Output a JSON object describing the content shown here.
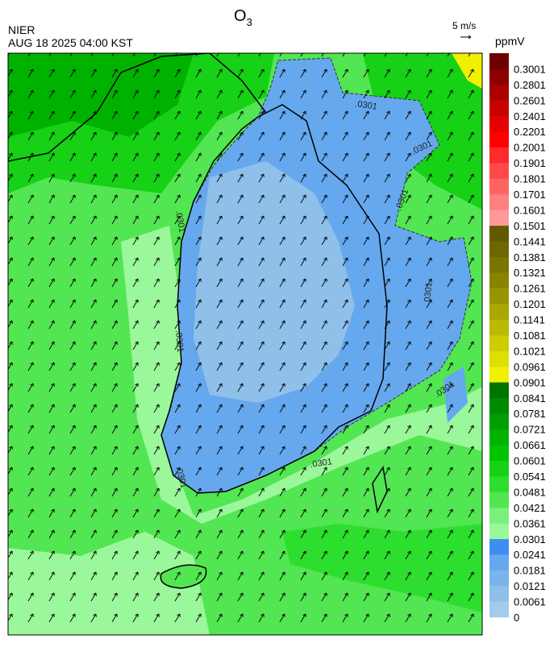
{
  "header": {
    "title": {
      "main": "O",
      "subscript": "3"
    },
    "source": "NIER",
    "datetime": "AUG 18 2025 04:00 KST",
    "wind_scale": "5 m/s"
  },
  "colorbar": {
    "unit": "ppmV",
    "levels": [
      0,
      0.0061,
      0.0121,
      0.0181,
      0.0241,
      0.0301,
      0.0361,
      0.0421,
      0.0481,
      0.0541,
      0.0601,
      0.0661,
      0.0721,
      0.0781,
      0.0841,
      0.0901,
      0.0961,
      0.1021,
      0.1081,
      0.1141,
      0.1201,
      0.1261,
      0.1321,
      0.1381,
      0.1441,
      0.1501,
      0.1601,
      0.1701,
      0.1801,
      0.1901,
      0.2001,
      0.2201,
      0.2401,
      0.2601,
      0.2801,
      0.3001
    ],
    "colors": [
      "#a3cbea",
      "#8ec0ea",
      "#7ab4ec",
      "#66a8ee",
      "#3e8ef2",
      "#9af79a",
      "#7aef7a",
      "#52e652",
      "#2ede2e",
      "#16d116",
      "#00c400",
      "#00b200",
      "#009e00",
      "#008a00",
      "#007400",
      "#f0f000",
      "#dede00",
      "#cccc00",
      "#baba00",
      "#a8a800",
      "#989600",
      "#888400",
      "#7a7400",
      "#6e6600",
      "#625a00",
      "#ff9a9a",
      "#ff8080",
      "#ff6464",
      "#ff4848",
      "#ff2a2a",
      "#ff0000",
      "#e40000",
      "#c80000",
      "#aa0000",
      "#8c0000",
      "#700000"
    ]
  },
  "map": {
    "contour_labels": [
      ".0301",
      ".0301",
      ".0301",
      ".0301",
      ".0301",
      ".0301",
      ".0301",
      ".0301",
      ".0301"
    ]
  }
}
